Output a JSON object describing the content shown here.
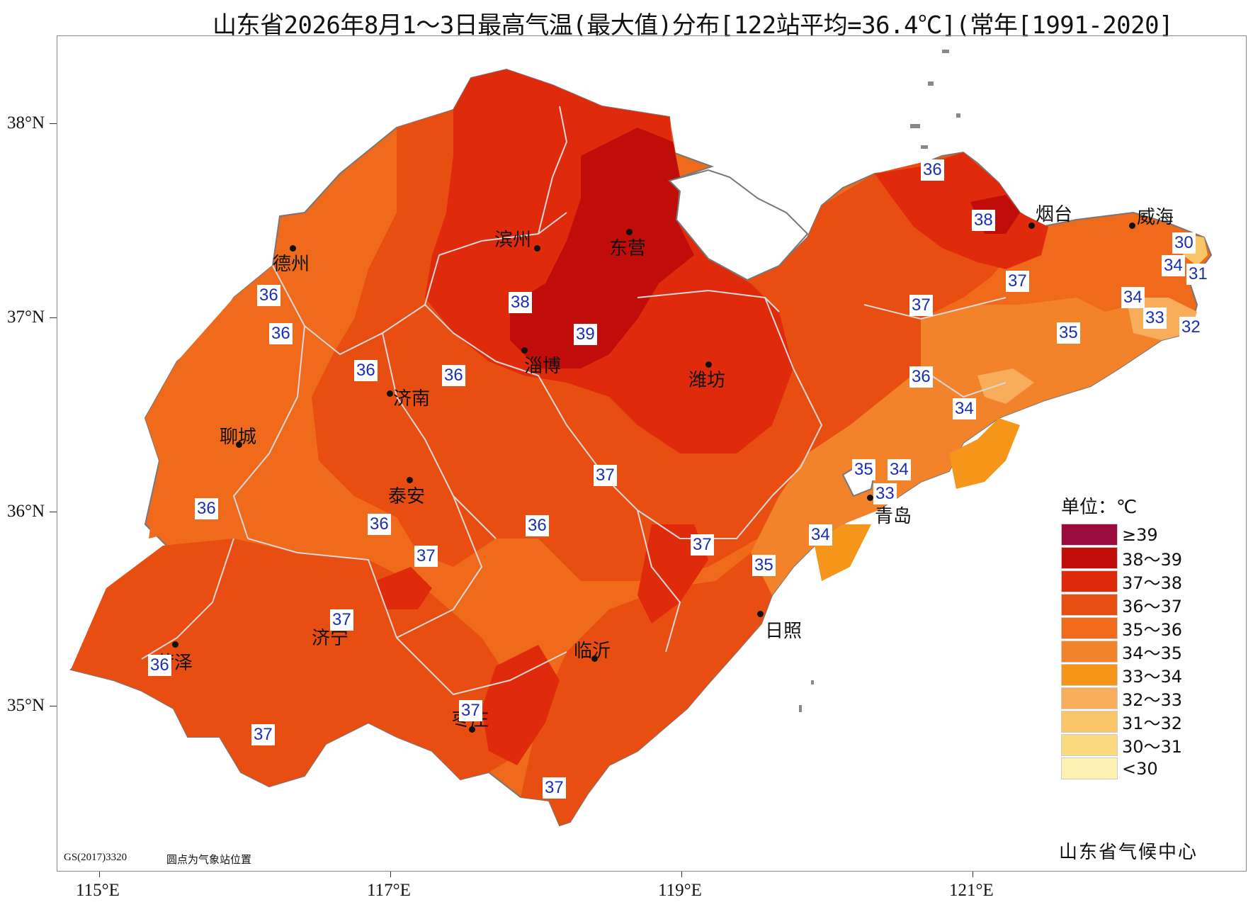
{
  "title": "山东省2026年8月1～3日最高气温(最大值)分布[122站平均=36.4℃](常年[1991-2020]",
  "axes": {
    "latitudes": [
      "38°N",
      "37°N",
      "36°N",
      "35°N"
    ],
    "longitudes": [
      "115°E",
      "117°E",
      "119°E",
      "121°E"
    ]
  },
  "cities": [
    "德州",
    "滨州",
    "东营",
    "烟台",
    "威海",
    "济南",
    "聊城",
    "淄博",
    "潍坊",
    "泰安",
    "青岛",
    "日照",
    "济宁",
    "临沂",
    "菏泽",
    "枣庄"
  ],
  "stations": [
    "36",
    "38",
    "30",
    "34",
    "31",
    "37",
    "34",
    "33",
    "32",
    "38",
    "36",
    "36",
    "39",
    "36",
    "36",
    "37",
    "35",
    "36",
    "34",
    "35",
    "34",
    "36",
    "37",
    "33",
    "36",
    "36",
    "37",
    "34",
    "35",
    "37",
    "37",
    "36",
    "37",
    "37",
    "37"
  ],
  "legend": {
    "title": "单位：℃",
    "items": [
      {
        "label": "≥39",
        "color": "#9b0a3c"
      },
      {
        "label": "38～39",
        "color": "#c00d0a"
      },
      {
        "label": "37～38",
        "color": "#e02a0c"
      },
      {
        "label": "36～37",
        "color": "#e84e12"
      },
      {
        "label": "35～36",
        "color": "#ef6a1a"
      },
      {
        "label": "34～35",
        "color": "#f3832a"
      },
      {
        "label": "33～34",
        "color": "#f5961a"
      },
      {
        "label": "32～33",
        "color": "#f7ad5a"
      },
      {
        "label": "31～32",
        "color": "#fac567"
      },
      {
        "label": "30～31",
        "color": "#fbd97e"
      },
      {
        "label": "<30",
        "color": "#fdf0b3"
      }
    ]
  },
  "footer": {
    "code": "GS(2017)3320",
    "note": "圆点为气象站位置",
    "credit": "山东省气候中心"
  }
}
